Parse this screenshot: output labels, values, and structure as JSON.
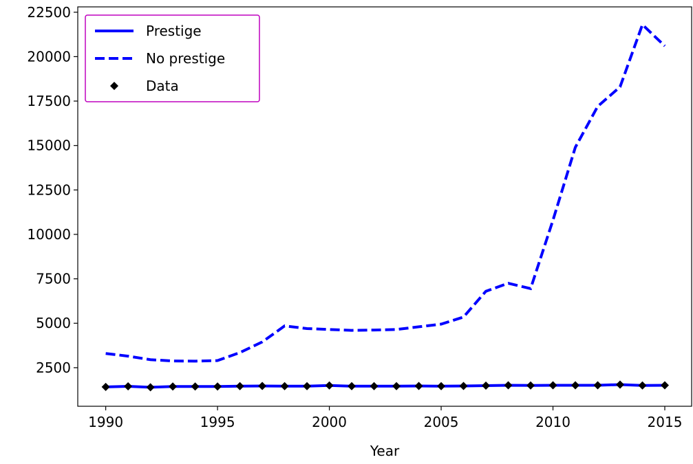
{
  "chart_data": {
    "type": "line",
    "xlabel": "Year",
    "x": [
      1990,
      1991,
      1992,
      1993,
      1994,
      1995,
      1996,
      1997,
      1998,
      1999,
      2000,
      2001,
      2002,
      2003,
      2004,
      2005,
      2006,
      2007,
      2008,
      2009,
      2010,
      2011,
      2012,
      2013,
      2014,
      2015
    ],
    "series": [
      {
        "name": "Prestige",
        "color": "#0000ff",
        "linestyle": "solid",
        "marker": "none",
        "values": [
          1420,
          1450,
          1400,
          1440,
          1440,
          1440,
          1460,
          1470,
          1460,
          1460,
          1500,
          1460,
          1460,
          1460,
          1470,
          1460,
          1470,
          1490,
          1510,
          1500,
          1510,
          1510,
          1510,
          1550,
          1500,
          1510
        ]
      },
      {
        "name": "No prestige",
        "color": "#0000ff",
        "linestyle": "dashed",
        "marker": "none",
        "values": [
          3300,
          3150,
          2950,
          2880,
          2870,
          2900,
          3350,
          3950,
          4850,
          4700,
          4650,
          4600,
          4620,
          4650,
          4800,
          4950,
          5350,
          6800,
          7250,
          6950,
          10800,
          14900,
          17200,
          18300,
          21800,
          20600
        ]
      },
      {
        "name": "Data",
        "color": "#000000",
        "linestyle": "none",
        "marker": "diamond",
        "values": [
          1420,
          1450,
          1400,
          1440,
          1440,
          1440,
          1460,
          1470,
          1460,
          1460,
          1500,
          1460,
          1460,
          1460,
          1470,
          1460,
          1470,
          1490,
          1510,
          1500,
          1510,
          1510,
          1510,
          1550,
          1500,
          1510
        ]
      }
    ],
    "xlim": [
      1988.75,
      2016.2
    ],
    "xticks": [
      1990,
      1995,
      2000,
      2005,
      2010,
      2015
    ],
    "ylim": [
      330,
      22800
    ],
    "yticks": [
      2500,
      5000,
      7500,
      10000,
      12500,
      15000,
      17500,
      20000,
      22500
    ],
    "legend": "upper left",
    "legend_edge_color": "#bf00bf",
    "grid": false
  }
}
